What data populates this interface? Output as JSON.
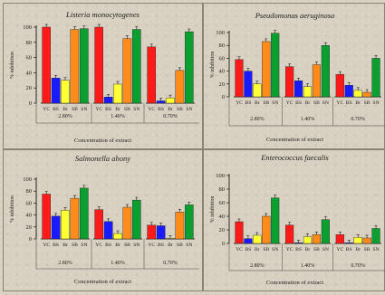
{
  "chart_data": [
    {
      "type": "bar",
      "title": "Listeria monocytogenes",
      "ylabel": "% inhibition",
      "xlabel": "Concentration of extract",
      "ylim": [
        0,
        100
      ],
      "yticks": [
        0,
        20,
        40,
        60,
        80,
        100
      ],
      "groups": [
        "2.80%",
        "1.40%",
        "0.70%"
      ],
      "categories": [
        "YC",
        "BS",
        "Br",
        "SB",
        "SN"
      ],
      "values": [
        [
          100,
          33,
          30,
          97,
          98
        ],
        [
          100,
          8,
          25,
          85,
          97
        ],
        [
          74,
          3,
          7,
          43,
          94
        ]
      ]
    },
    {
      "type": "bar",
      "title": "Pseudomonas aeruginosa",
      "ylabel": "% inhibition",
      "xlabel": "Concentration of extract",
      "ylim": [
        0,
        100
      ],
      "yticks": [
        0,
        20,
        40,
        60,
        80,
        100
      ],
      "groups": [
        "2.80%",
        "1.40%",
        "0.70%"
      ],
      "categories": [
        "YC",
        "BS",
        "Br",
        "SB",
        "SN"
      ],
      "values": [
        [
          58,
          40,
          20,
          86,
          99
        ],
        [
          47,
          25,
          16,
          50,
          80
        ],
        [
          35,
          18,
          10,
          7,
          60
        ]
      ]
    },
    {
      "type": "bar",
      "title": "Salmonella abony",
      "ylabel": "% inhibition",
      "xlabel": "Concentration of extract",
      "ylim": [
        0,
        100
      ],
      "yticks": [
        0,
        20,
        40,
        60,
        80,
        100
      ],
      "groups": [
        "2.80%",
        "1.40%",
        "0.70%"
      ],
      "categories": [
        "YC",
        "BS",
        "Br",
        "SB",
        "SN"
      ],
      "values": [
        [
          75,
          38,
          48,
          68,
          85
        ],
        [
          49,
          29,
          9,
          53,
          65
        ],
        [
          23,
          22,
          0,
          45,
          57
        ]
      ]
    },
    {
      "type": "bar",
      "title": "Enterococcus faecalis",
      "ylabel": "% inhibition",
      "xlabel": "Concentration of extract",
      "ylim": [
        0,
        100
      ],
      "yticks": [
        0,
        20,
        40,
        60,
        80,
        100
      ],
      "groups": [
        "2.80%",
        "1.40%",
        "0.70%"
      ],
      "categories": [
        "YC",
        "BS",
        "Br",
        "SB",
        "SN"
      ],
      "values": [
        [
          32,
          7,
          12,
          40,
          67
        ],
        [
          27,
          1,
          10,
          13,
          35
        ],
        [
          13,
          1,
          9,
          8,
          22
        ]
      ]
    }
  ],
  "colors": [
    "#ff1a1a",
    "#1a1aff",
    "#ffff33",
    "#ff8c1a",
    "#0a9f2f"
  ]
}
